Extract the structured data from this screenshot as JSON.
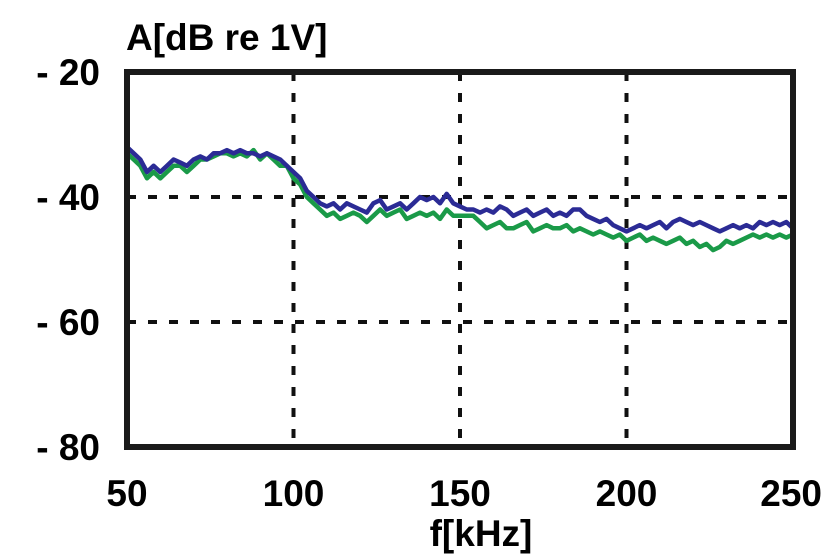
{
  "chart_data": {
    "type": "line",
    "ylabel": "A[dB re 1V]",
    "xlabel": "f[kHz]",
    "xlim": [
      50,
      250
    ],
    "ylim": [
      -80,
      -20
    ],
    "xticks": [
      50,
      100,
      150,
      200,
      250
    ],
    "yticks": [
      -20,
      -40,
      -60,
      -80
    ],
    "xtick_labels": [
      "50",
      "100",
      "150",
      "200",
      "250"
    ],
    "ytick_labels": [
      "- 20",
      "- 40",
      "- 60",
      "- 80"
    ],
    "grid": "dashed",
    "grid_x": [
      100,
      150,
      200
    ],
    "grid_y": [
      -40,
      -60
    ],
    "colors": {
      "series1": "#2b2b95",
      "series2": "#1a9a48",
      "axis": "#1a1a1a",
      "grid": "#111111"
    },
    "series": [
      {
        "color": "#1a9a48",
        "x": [
          50,
          52,
          54,
          56,
          58,
          60,
          62,
          64,
          66,
          68,
          70,
          72,
          74,
          76,
          78,
          80,
          82,
          84,
          86,
          88,
          90,
          92,
          94,
          96,
          98,
          100,
          102,
          104,
          106,
          108,
          110,
          112,
          114,
          116,
          118,
          120,
          122,
          124,
          126,
          128,
          130,
          132,
          134,
          136,
          138,
          140,
          142,
          144,
          146,
          148,
          150,
          152,
          154,
          156,
          158,
          160,
          162,
          164,
          166,
          168,
          170,
          172,
          174,
          176,
          178,
          180,
          182,
          184,
          186,
          188,
          190,
          192,
          194,
          196,
          198,
          200,
          202,
          204,
          206,
          208,
          210,
          212,
          214,
          216,
          218,
          220,
          222,
          224,
          226,
          228,
          230,
          232,
          234,
          236,
          238,
          240,
          242,
          244,
          246,
          248,
          250
        ],
        "y": [
          -33,
          -34,
          -35,
          -37,
          -36,
          -37,
          -36,
          -35,
          -35,
          -36,
          -35,
          -34,
          -34,
          -33.5,
          -33,
          -33,
          -33.5,
          -33,
          -33.5,
          -32.5,
          -34,
          -33,
          -34,
          -35,
          -35,
          -37,
          -38,
          -40,
          -41,
          -42,
          -43,
          -42.5,
          -43.5,
          -43,
          -42.5,
          -43,
          -44,
          -43,
          -42,
          -43,
          -42.5,
          -42,
          -43.5,
          -43,
          -42.5,
          -43,
          -42.5,
          -43.5,
          -42,
          -43,
          -43,
          -43,
          -43,
          -44,
          -45,
          -44.5,
          -44,
          -45,
          -45,
          -44.5,
          -44,
          -45.5,
          -45,
          -44.5,
          -45,
          -45,
          -44.5,
          -45.5,
          -45,
          -45.5,
          -46,
          -45.5,
          -46,
          -46.5,
          -46,
          -47,
          -46.5,
          -46,
          -47,
          -46.5,
          -47,
          -47.5,
          -47,
          -46.5,
          -47.5,
          -47,
          -48,
          -47.5,
          -48.5,
          -48,
          -47,
          -47.5,
          -47,
          -46.5,
          -46,
          -46.5,
          -46,
          -46.5,
          -46,
          -46.5,
          -46
        ]
      },
      {
        "color": "#2b2b95",
        "x": [
          50,
          52,
          54,
          56,
          58,
          60,
          62,
          64,
          66,
          68,
          70,
          72,
          74,
          76,
          78,
          80,
          82,
          84,
          86,
          88,
          90,
          92,
          94,
          96,
          98,
          100,
          102,
          104,
          106,
          108,
          110,
          112,
          114,
          116,
          118,
          120,
          122,
          124,
          126,
          128,
          130,
          132,
          134,
          136,
          138,
          140,
          142,
          144,
          146,
          148,
          150,
          152,
          154,
          156,
          158,
          160,
          162,
          164,
          166,
          168,
          170,
          172,
          174,
          176,
          178,
          180,
          182,
          184,
          186,
          188,
          190,
          192,
          194,
          196,
          198,
          200,
          202,
          204,
          206,
          208,
          210,
          212,
          214,
          216,
          218,
          220,
          222,
          224,
          226,
          228,
          230,
          232,
          234,
          236,
          238,
          240,
          242,
          244,
          246,
          248,
          250
        ],
        "y": [
          -32,
          -33,
          -34,
          -36,
          -35,
          -36,
          -35,
          -34,
          -34.5,
          -35,
          -34,
          -33.5,
          -34,
          -33,
          -33,
          -32.5,
          -33,
          -32.5,
          -33,
          -33,
          -33.5,
          -33,
          -33.5,
          -34,
          -35,
          -36,
          -37,
          -39,
          -40,
          -41,
          -41.5,
          -41,
          -42,
          -41,
          -41.5,
          -42,
          -42.5,
          -41,
          -40.5,
          -42,
          -41.5,
          -41,
          -42,
          -41,
          -40,
          -40.5,
          -40,
          -41,
          -39.5,
          -41,
          -41.5,
          -42,
          -42,
          -42.5,
          -42,
          -42.5,
          -41.5,
          -42,
          -43,
          -42.5,
          -42,
          -43,
          -42.5,
          -42,
          -43,
          -42.5,
          -43,
          -42,
          -42,
          -43,
          -43.5,
          -44,
          -43.5,
          -44.5,
          -45,
          -45.5,
          -45,
          -44.5,
          -45,
          -44.5,
          -44,
          -45,
          -44,
          -43.5,
          -44,
          -44.5,
          -44,
          -44.5,
          -45,
          -45.5,
          -45,
          -44.5,
          -45,
          -44.5,
          -45,
          -44,
          -44.5,
          -44,
          -44.5,
          -44,
          -45
        ]
      }
    ]
  }
}
